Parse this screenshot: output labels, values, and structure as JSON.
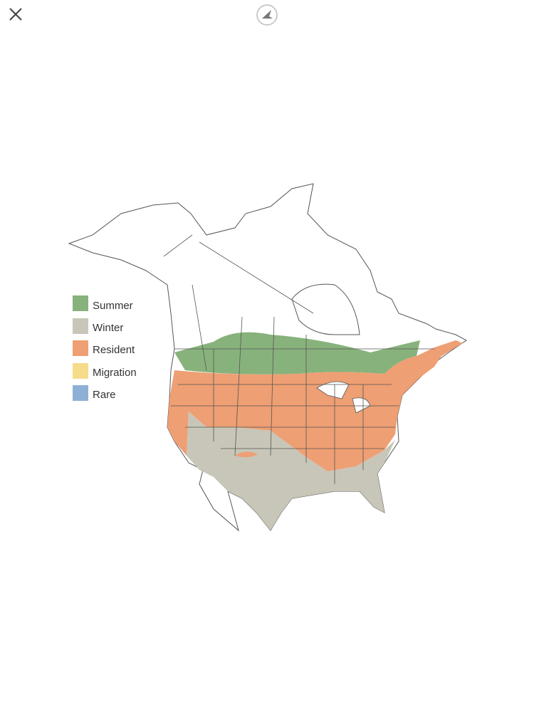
{
  "legend": {
    "items": [
      {
        "label": "Summer"
      },
      {
        "label": "Winter"
      },
      {
        "label": "Resident"
      },
      {
        "label": "Migration"
      },
      {
        "label": "Rare"
      }
    ]
  }
}
